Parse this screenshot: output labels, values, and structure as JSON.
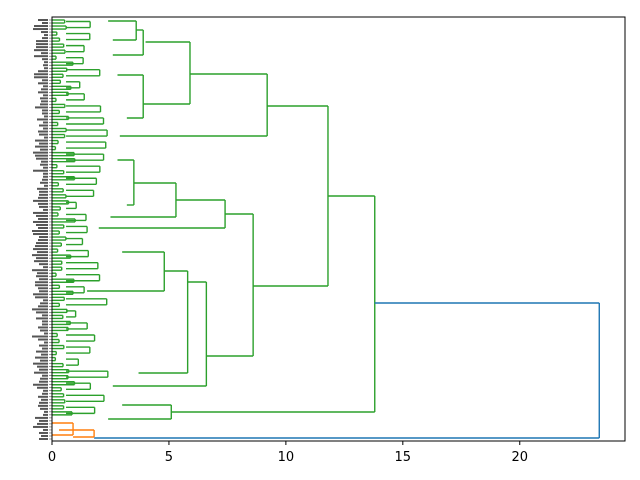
{
  "chart_data": {
    "type": "dendrogram",
    "orientation": "left",
    "title": "",
    "xlabel": "",
    "ylabel": "",
    "xlim": [
      0,
      24.5
    ],
    "x_ticks": [
      0,
      5,
      10,
      15,
      20
    ],
    "x_tick_labels": [
      "0",
      "5",
      "10",
      "15",
      "20"
    ],
    "grid": false,
    "legend": "none",
    "leaf_count": 140,
    "colors": {
      "cluster_orange": "#ff7f0e",
      "cluster_green": "#2ca02c",
      "link_above_threshold": "#1f77b4",
      "axes": "#000000"
    },
    "merges": [
      {
        "id": "g_top_a",
        "height": 3.6,
        "cluster": "green"
      },
      {
        "id": "g_top_b",
        "height": 4.0,
        "cluster": "green"
      },
      {
        "id": "g_top_c",
        "height": 3.9,
        "cluster": "green"
      },
      {
        "id": "g_top_ab",
        "height": 5.9,
        "cluster": "green"
      },
      {
        "id": "g_top",
        "height": 9.2,
        "cluster": "green"
      },
      {
        "id": "g_mid_a",
        "height": 3.5,
        "cluster": "green"
      },
      {
        "id": "g_mid_b",
        "height": 5.3,
        "cluster": "green"
      },
      {
        "id": "g_mid",
        "height": 7.4,
        "cluster": "green"
      },
      {
        "id": "g_mid2_a",
        "height": 4.8,
        "cluster": "green"
      },
      {
        "id": "g_mid2_b",
        "height": 5.8,
        "cluster": "green"
      },
      {
        "id": "g_mid2_c",
        "height": 6.6,
        "cluster": "green"
      },
      {
        "id": "g_mid2",
        "height": 8.6,
        "cluster": "green"
      },
      {
        "id": "g_upper",
        "height": 11.8,
        "cluster": "green"
      },
      {
        "id": "g_low",
        "height": 5.1,
        "cluster": "green"
      },
      {
        "id": "g_all",
        "height": 13.8,
        "cluster": "green"
      },
      {
        "id": "o_a",
        "height": 0.9,
        "cluster": "orange"
      },
      {
        "id": "o_all",
        "height": 1.8,
        "cluster": "orange"
      },
      {
        "id": "root",
        "height": 23.4,
        "cluster": "above_threshold"
      }
    ]
  }
}
